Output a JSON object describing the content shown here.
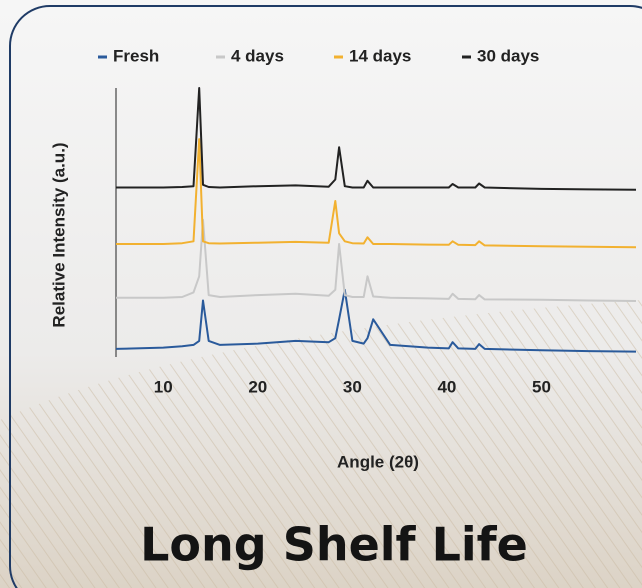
{
  "heading": "Long Shelf Life",
  "chart_data": {
    "type": "line",
    "xlabel": "Angle (2θ)",
    "ylabel": "Relative Intensity (a.u.)",
    "legend": "top",
    "xlim": [
      5,
      60
    ],
    "xticks": [
      10,
      20,
      30,
      40,
      50
    ],
    "ylim": [
      0,
      100
    ],
    "x": [
      5,
      10,
      12,
      13.2,
      13.8,
      14.2,
      14.8,
      16,
      20,
      24,
      27.5,
      28.2,
      28.6,
      29.2,
      30,
      31.2,
      31.6,
      32.2,
      34,
      38,
      40.2,
      40.6,
      41.2,
      43,
      43.4,
      44,
      50,
      55,
      60
    ],
    "series": [
      {
        "name": "Fresh",
        "color": "#2a5a9b",
        "values": [
          3,
          3.5,
          4,
          4.5,
          6,
          21,
          6,
          4.5,
          5,
          6,
          5.5,
          7,
          14,
          25,
          6,
          5,
          7,
          14,
          4.5,
          3.5,
          3.2,
          5.5,
          3.2,
          3,
          4.8,
          3,
          2.5,
          2.2,
          2
        ]
      },
      {
        "name": "4 days",
        "color": "#c8c8c8",
        "values": [
          22,
          22,
          22.3,
          24,
          30,
          51,
          23,
          22.3,
          23,
          23.5,
          22.8,
          25,
          42,
          23,
          22.3,
          22.3,
          30,
          22.5,
          22,
          21.8,
          21.6,
          23.5,
          21.6,
          21.5,
          23,
          21.4,
          21.3,
          21,
          20.8
        ]
      },
      {
        "name": "14 days",
        "color": "#f2b130",
        "values": [
          42,
          42,
          42.3,
          43,
          81,
          43,
          42.3,
          42.2,
          42.5,
          42.8,
          42.5,
          58,
          46,
          43,
          42.3,
          42.2,
          44.5,
          42,
          42,
          41.8,
          41.7,
          43,
          41.7,
          41.6,
          43,
          41.5,
          41.2,
          41,
          40.8
        ]
      },
      {
        "name": "30 days",
        "color": "#222222",
        "values": [
          63,
          63,
          63.2,
          63.5,
          100,
          64,
          63.2,
          63,
          63.5,
          63.8,
          63.3,
          66,
          78,
          63.5,
          63,
          63,
          65.5,
          63,
          63,
          63,
          63,
          64.3,
          63,
          63,
          64.5,
          63,
          62.5,
          62.3,
          62.2
        ]
      }
    ]
  }
}
